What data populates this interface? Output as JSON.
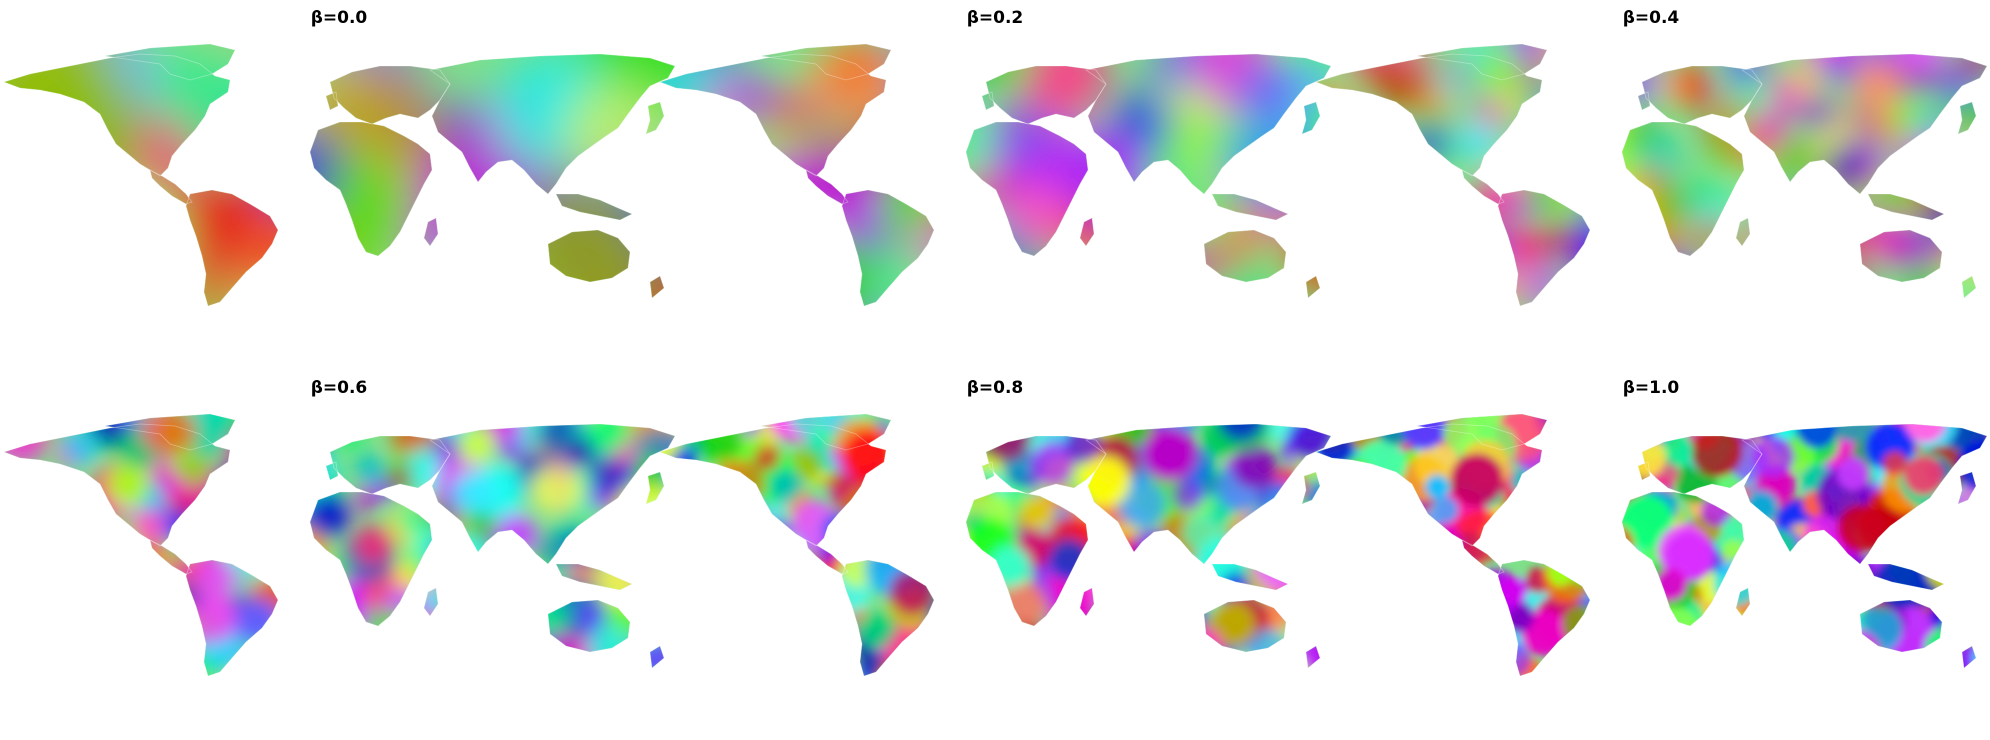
{
  "figure": {
    "panels": [
      {
        "title": "β=0.0",
        "seed": 3,
        "blobs": 7,
        "sat": 0.85
      },
      {
        "title": "β=0.2",
        "seed": 11,
        "blobs": 14,
        "sat": 0.9
      },
      {
        "title": "β=0.4",
        "seed": 23,
        "blobs": 22,
        "sat": 1.0
      },
      {
        "title": "β=0.6",
        "seed": 37,
        "blobs": 34,
        "sat": 1.0
      },
      {
        "title": "β=0.8",
        "seed": 51,
        "blobs": 40,
        "sat": 1.0
      },
      {
        "title": "β=1.0",
        "seed": 67,
        "blobs": 44,
        "sat": 1.0
      }
    ]
  }
}
